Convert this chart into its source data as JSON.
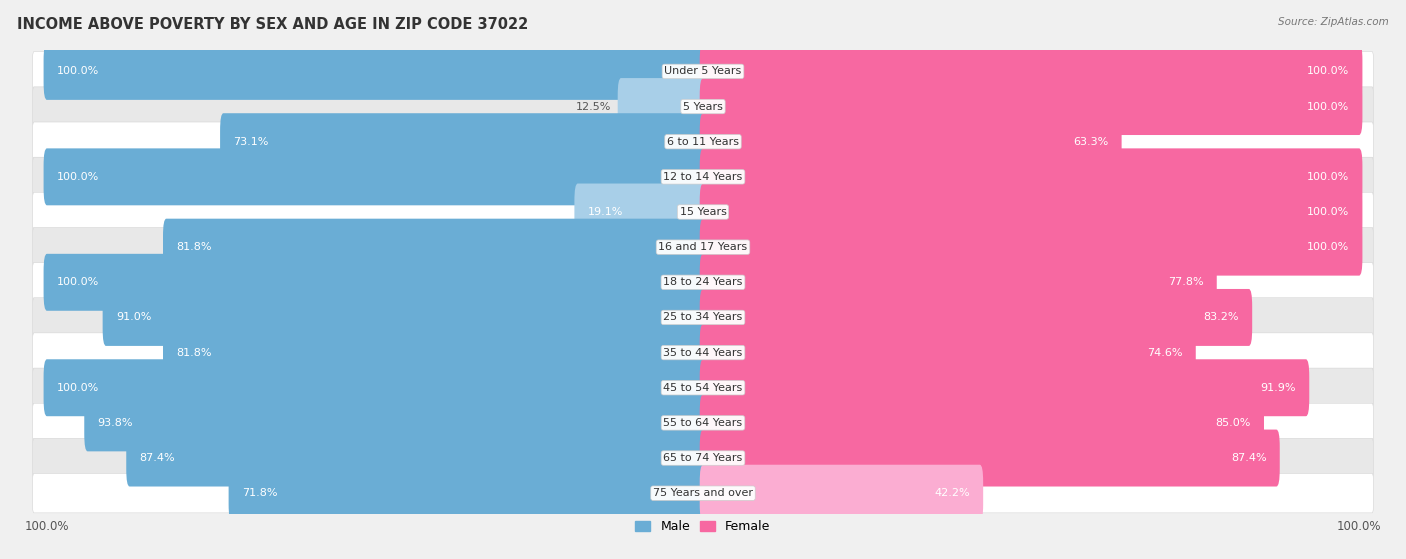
{
  "title": "INCOME ABOVE POVERTY BY SEX AND AGE IN ZIP CODE 37022",
  "source": "Source: ZipAtlas.com",
  "categories": [
    "Under 5 Years",
    "5 Years",
    "6 to 11 Years",
    "12 to 14 Years",
    "15 Years",
    "16 and 17 Years",
    "18 to 24 Years",
    "25 to 34 Years",
    "35 to 44 Years",
    "45 to 54 Years",
    "55 to 64 Years",
    "65 to 74 Years",
    "75 Years and over"
  ],
  "male_values": [
    100.0,
    12.5,
    73.1,
    100.0,
    19.1,
    81.8,
    100.0,
    91.0,
    81.8,
    100.0,
    93.8,
    87.4,
    71.8
  ],
  "female_values": [
    100.0,
    100.0,
    63.3,
    100.0,
    100.0,
    100.0,
    77.8,
    83.2,
    74.6,
    91.9,
    85.0,
    87.4,
    42.2
  ],
  "male_color_full": "#6aadd5",
  "male_color_light": "#a8cfe8",
  "female_color_full": "#f768a1",
  "female_color_light": "#fbadd2",
  "background_color": "#f0f0f0",
  "row_bg_color": "#ffffff",
  "row_alt_bg_color": "#e8e8e8",
  "title_fontsize": 10.5,
  "label_fontsize": 8,
  "value_fontsize": 8,
  "source_fontsize": 7.5,
  "max_value": 100.0,
  "light_threshold": 50.0
}
